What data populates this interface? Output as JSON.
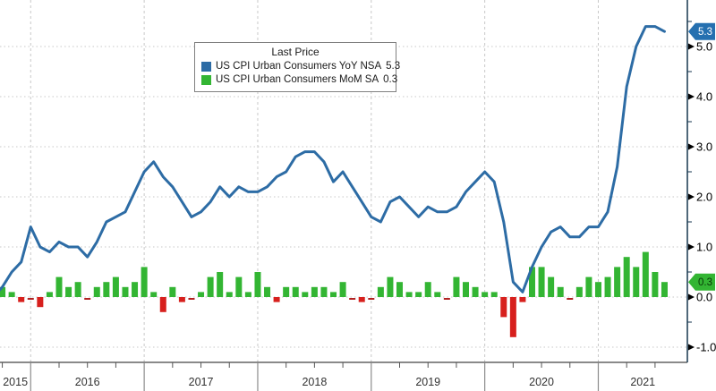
{
  "window": {
    "title": "US CPI Urban Consumers chart"
  },
  "colors": {
    "line_blue": "#2d6ca5",
    "badge_blue": "#2570b0",
    "bar_green": "#33b533",
    "bar_red": "#d7201d",
    "zero_dash_red": "#b22222",
    "grid": "#c8c8c8",
    "axis_dark": "#16364f",
    "axis_bottom": "#444444",
    "tick_minor": "#555555",
    "year_separator": "#8c8c8c",
    "axis_text": "#000000",
    "year_text": "#333333",
    "background": "#ffffff"
  },
  "chart_data": {
    "type": "line+bar",
    "title": "",
    "legend": {
      "title": "Last Price",
      "entries": [
        {
          "label": "US CPI Urban Consumers YoY NSA",
          "value": "5.3",
          "color": "#2d6ca5"
        },
        {
          "label": "US CPI Urban Consumers MoM SA",
          "value": "0.3",
          "color": "#33b533"
        }
      ],
      "position": "top-center"
    },
    "x_start_month": "2015-09",
    "x_end_month": "2021-08",
    "x_year_labels": [
      "2015",
      "2016",
      "2017",
      "2018",
      "2019",
      "2020",
      "2021"
    ],
    "y_axis": {
      "side": "right",
      "ticks": [
        -1.0,
        0.0,
        1.0,
        2.0,
        3.0,
        4.0,
        5.0
      ],
      "tick_labels": [
        "-1.0",
        "0.0",
        "1.0",
        "2.0",
        "3.0",
        "4.0",
        "5.0"
      ],
      "minor_tick_step": 0.5,
      "range": [
        -1.35,
        5.95
      ],
      "grid": "dotted"
    },
    "series": [
      {
        "name": "US CPI Urban Consumers YoY NSA",
        "type": "line",
        "color": "#2d6ca5",
        "last_price": "5.3",
        "values": [
          0.0,
          0.2,
          0.5,
          0.7,
          1.4,
          1.0,
          0.9,
          1.1,
          1.0,
          1.0,
          0.8,
          1.1,
          1.5,
          1.6,
          1.7,
          2.1,
          2.5,
          2.7,
          2.4,
          2.2,
          1.9,
          1.6,
          1.7,
          1.9,
          2.2,
          2.0,
          2.2,
          2.1,
          2.1,
          2.2,
          2.4,
          2.5,
          2.8,
          2.9,
          2.9,
          2.7,
          2.3,
          2.5,
          2.2,
          1.9,
          1.6,
          1.5,
          1.9,
          2.0,
          1.8,
          1.6,
          1.8,
          1.7,
          1.7,
          1.8,
          2.1,
          2.3,
          2.5,
          2.3,
          1.5,
          0.3,
          0.1,
          0.6,
          1.0,
          1.3,
          1.4,
          1.2,
          1.2,
          1.4,
          1.4,
          1.7,
          2.6,
          4.2,
          5.0,
          5.4,
          5.4,
          5.3
        ]
      },
      {
        "name": "US CPI Urban Consumers MoM SA",
        "type": "bar",
        "color_positive": "#33b533",
        "color_negative": "#d7201d",
        "last_price": "0.3",
        "values": [
          -0.2,
          0.2,
          0.1,
          -0.1,
          0.0,
          -0.2,
          0.1,
          0.4,
          0.2,
          0.3,
          0.0,
          0.2,
          0.3,
          0.4,
          0.2,
          0.3,
          0.6,
          0.1,
          -0.3,
          0.2,
          -0.1,
          0.0,
          0.1,
          0.4,
          0.5,
          0.1,
          0.4,
          0.1,
          0.5,
          0.2,
          -0.1,
          0.2,
          0.2,
          0.1,
          0.2,
          0.2,
          0.1,
          0.3,
          0.0,
          -0.1,
          0.0,
          0.2,
          0.4,
          0.3,
          0.1,
          0.1,
          0.3,
          0.1,
          0.0,
          0.4,
          0.3,
          0.2,
          0.1,
          0.1,
          -0.4,
          -0.8,
          -0.1,
          0.6,
          0.6,
          0.4,
          0.2,
          0.0,
          0.2,
          0.4,
          0.3,
          0.4,
          0.6,
          0.8,
          0.6,
          0.9,
          0.5,
          0.3
        ]
      }
    ],
    "badges": [
      {
        "text": "5.3",
        "value": 5.3,
        "bg": "#2570b0",
        "fg": "#ffffff",
        "name": "yoy-last-price-badge"
      },
      {
        "text": "0.3",
        "value": 0.3,
        "bg": "#33b533",
        "fg": "#073807",
        "name": "mom-last-price-badge"
      }
    ]
  }
}
